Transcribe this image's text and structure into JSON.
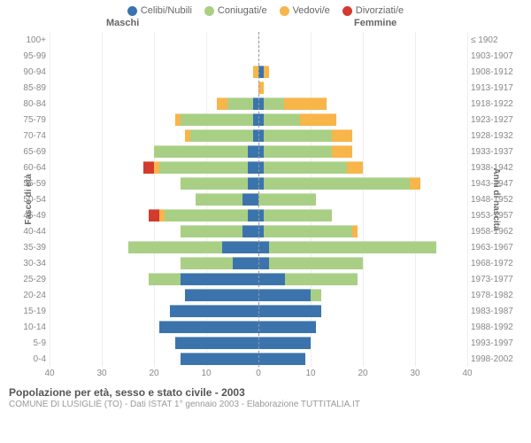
{
  "legend": [
    {
      "label": "Celibi/Nubili",
      "color": "#3b74ad"
    },
    {
      "label": "Coniugati/e",
      "color": "#a9cf85"
    },
    {
      "label": "Vedovi/e",
      "color": "#f7b54a"
    },
    {
      "label": "Divorziati/e",
      "color": "#d23b2f"
    }
  ],
  "header": {
    "male": "Maschi",
    "female": "Femmine"
  },
  "axis": {
    "left_title": "Fasce di età",
    "right_title": "Anni di nascita",
    "x_max": 40,
    "x_ticks": [
      40,
      30,
      20,
      10,
      0,
      10,
      20,
      30,
      40
    ]
  },
  "colors": {
    "single": "#3b74ad",
    "married": "#a9cf85",
    "widowed": "#f7b54a",
    "divorced": "#d23b2f",
    "grid": "#eeeeee",
    "centerline": "#999999",
    "text": "#666666",
    "bg": "#ffffff"
  },
  "rows": [
    {
      "age": "100+",
      "birth": "≤ 1902",
      "m": {
        "s": 0,
        "c": 0,
        "w": 0,
        "d": 0
      },
      "f": {
        "s": 0,
        "c": 0,
        "w": 0,
        "d": 0
      }
    },
    {
      "age": "95-99",
      "birth": "1903-1907",
      "m": {
        "s": 0,
        "c": 0,
        "w": 0,
        "d": 0
      },
      "f": {
        "s": 0,
        "c": 0,
        "w": 0,
        "d": 0
      }
    },
    {
      "age": "90-94",
      "birth": "1908-1912",
      "m": {
        "s": 0,
        "c": 0,
        "w": 1,
        "d": 0
      },
      "f": {
        "s": 1,
        "c": 0,
        "w": 1,
        "d": 0
      }
    },
    {
      "age": "85-89",
      "birth": "1913-1917",
      "m": {
        "s": 0,
        "c": 0,
        "w": 0,
        "d": 0
      },
      "f": {
        "s": 0,
        "c": 0,
        "w": 1,
        "d": 0
      }
    },
    {
      "age": "80-84",
      "birth": "1918-1922",
      "m": {
        "s": 1,
        "c": 5,
        "w": 2,
        "d": 0
      },
      "f": {
        "s": 1,
        "c": 4,
        "w": 8,
        "d": 0
      }
    },
    {
      "age": "75-79",
      "birth": "1923-1927",
      "m": {
        "s": 1,
        "c": 14,
        "w": 1,
        "d": 0
      },
      "f": {
        "s": 1,
        "c": 7,
        "w": 7,
        "d": 0
      }
    },
    {
      "age": "70-74",
      "birth": "1928-1932",
      "m": {
        "s": 1,
        "c": 12,
        "w": 1,
        "d": 0
      },
      "f": {
        "s": 1,
        "c": 13,
        "w": 4,
        "d": 0
      }
    },
    {
      "age": "65-69",
      "birth": "1933-1937",
      "m": {
        "s": 2,
        "c": 18,
        "w": 0,
        "d": 0
      },
      "f": {
        "s": 1,
        "c": 13,
        "w": 4,
        "d": 0
      }
    },
    {
      "age": "60-64",
      "birth": "1938-1942",
      "m": {
        "s": 2,
        "c": 17,
        "w": 1,
        "d": 2
      },
      "f": {
        "s": 1,
        "c": 16,
        "w": 3,
        "d": 0
      }
    },
    {
      "age": "55-59",
      "birth": "1943-1947",
      "m": {
        "s": 2,
        "c": 13,
        "w": 0,
        "d": 0
      },
      "f": {
        "s": 1,
        "c": 28,
        "w": 2,
        "d": 0
      }
    },
    {
      "age": "50-54",
      "birth": "1948-1952",
      "m": {
        "s": 3,
        "c": 9,
        "w": 0,
        "d": 0
      },
      "f": {
        "s": 0,
        "c": 11,
        "w": 0,
        "d": 0
      }
    },
    {
      "age": "45-49",
      "birth": "1953-1957",
      "m": {
        "s": 2,
        "c": 16,
        "w": 1,
        "d": 2
      },
      "f": {
        "s": 1,
        "c": 13,
        "w": 0,
        "d": 0
      }
    },
    {
      "age": "40-44",
      "birth": "1958-1962",
      "m": {
        "s": 3,
        "c": 12,
        "w": 0,
        "d": 0
      },
      "f": {
        "s": 1,
        "c": 17,
        "w": 1,
        "d": 0
      }
    },
    {
      "age": "35-39",
      "birth": "1963-1967",
      "m": {
        "s": 7,
        "c": 18,
        "w": 0,
        "d": 0
      },
      "f": {
        "s": 2,
        "c": 32,
        "w": 0,
        "d": 0
      }
    },
    {
      "age": "30-34",
      "birth": "1968-1972",
      "m": {
        "s": 5,
        "c": 10,
        "w": 0,
        "d": 0
      },
      "f": {
        "s": 2,
        "c": 18,
        "w": 0,
        "d": 0
      }
    },
    {
      "age": "25-29",
      "birth": "1973-1977",
      "m": {
        "s": 15,
        "c": 6,
        "w": 0,
        "d": 0
      },
      "f": {
        "s": 5,
        "c": 14,
        "w": 0,
        "d": 0
      }
    },
    {
      "age": "20-24",
      "birth": "1978-1982",
      "m": {
        "s": 14,
        "c": 0,
        "w": 0,
        "d": 0
      },
      "f": {
        "s": 10,
        "c": 2,
        "w": 0,
        "d": 0
      }
    },
    {
      "age": "15-19",
      "birth": "1983-1987",
      "m": {
        "s": 17,
        "c": 0,
        "w": 0,
        "d": 0
      },
      "f": {
        "s": 12,
        "c": 0,
        "w": 0,
        "d": 0
      }
    },
    {
      "age": "10-14",
      "birth": "1988-1992",
      "m": {
        "s": 19,
        "c": 0,
        "w": 0,
        "d": 0
      },
      "f": {
        "s": 11,
        "c": 0,
        "w": 0,
        "d": 0
      }
    },
    {
      "age": "5-9",
      "birth": "1993-1997",
      "m": {
        "s": 16,
        "c": 0,
        "w": 0,
        "d": 0
      },
      "f": {
        "s": 10,
        "c": 0,
        "w": 0,
        "d": 0
      }
    },
    {
      "age": "0-4",
      "birth": "1998-2002",
      "m": {
        "s": 15,
        "c": 0,
        "w": 0,
        "d": 0
      },
      "f": {
        "s": 9,
        "c": 0,
        "w": 0,
        "d": 0
      }
    }
  ],
  "footer": {
    "title": "Popolazione per età, sesso e stato civile - 2003",
    "sub": "COMUNE DI LUSIGLIÈ (TO) - Dati ISTAT 1° gennaio 2003 - Elaborazione TUTTITALIA.IT"
  }
}
